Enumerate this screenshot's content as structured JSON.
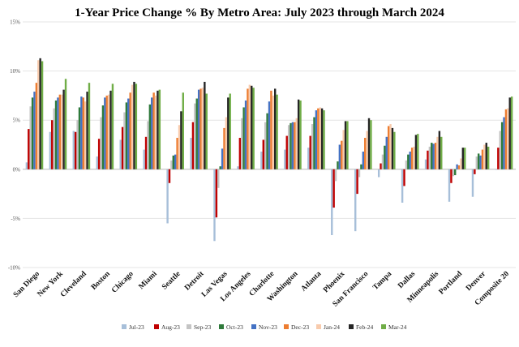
{
  "chart_data": {
    "type": "bar",
    "title": "1-Year Price Change % By Metro Area: July 2023 through March 2024",
    "xlabel": "",
    "ylabel": "",
    "ylim": [
      -10,
      15
    ],
    "yticks": [
      "-10%",
      "-5%",
      "0%",
      "5%",
      "10%",
      "15%"
    ],
    "ytick_values": [
      -10,
      -5,
      0,
      5,
      10,
      15
    ],
    "grid": true,
    "legend_position": "bottom",
    "categories": [
      "San Diego",
      "New York",
      "Cleveland",
      "Boston",
      "Chicago",
      "Miami",
      "Seattle",
      "Detroit",
      "Las Vegas",
      "Los Angeles",
      "Charlotte",
      "Washington",
      "Atlanta",
      "Phoenix",
      "San Francisco",
      "Tampa",
      "Dallas",
      "Minneapolis",
      "Portland",
      "Denver",
      "Composite 20"
    ],
    "series": [
      {
        "name": "Jul-23",
        "color": "#a7bfd9",
        "values": [
          0.7,
          3.8,
          3.9,
          1.3,
          3.0,
          2.0,
          -5.5,
          3.2,
          -7.3,
          0.3,
          1.8,
          2.0,
          2.2,
          -6.7,
          -6.3,
          -0.8,
          -3.4,
          1.0,
          -3.3,
          -2.8,
          0.0
        ]
      },
      {
        "name": "Aug-23",
        "color": "#c00000",
        "values": [
          4.1,
          5.0,
          3.8,
          3.1,
          4.3,
          3.3,
          -1.4,
          4.8,
          -4.9,
          3.2,
          3.0,
          3.4,
          3.4,
          -3.9,
          -2.5,
          0.6,
          -1.7,
          1.9,
          -1.4,
          -0.5,
          2.2
        ]
      },
      {
        "name": "Sep-23",
        "color": "#c4c4c4",
        "values": [
          6.4,
          6.2,
          5.0,
          5.3,
          5.8,
          4.9,
          0.9,
          6.7,
          -1.9,
          5.2,
          4.8,
          4.5,
          4.6,
          -1.2,
          -0.8,
          1.5,
          0.9,
          2.3,
          -0.7,
          1.3,
          3.9
        ]
      },
      {
        "name": "Oct-23",
        "color": "#2f7a3b",
        "values": [
          7.3,
          7.0,
          6.3,
          6.5,
          6.8,
          6.6,
          1.4,
          7.2,
          0.3,
          6.3,
          5.7,
          4.7,
          5.3,
          0.8,
          0.5,
          2.4,
          1.5,
          2.7,
          -0.6,
          1.6,
          4.8
        ]
      },
      {
        "name": "Nov-23",
        "color": "#4472c4",
        "values": [
          7.9,
          7.3,
          7.4,
          7.3,
          7.2,
          7.3,
          1.5,
          8.1,
          2.1,
          7.0,
          6.9,
          4.8,
          6.0,
          2.5,
          1.8,
          3.3,
          1.8,
          2.6,
          0.5,
          1.4,
          5.3
        ]
      },
      {
        "name": "Dec-23",
        "color": "#ed7d31",
        "values": [
          8.8,
          7.6,
          7.3,
          7.5,
          7.8,
          7.8,
          3.2,
          8.2,
          4.2,
          8.2,
          8.0,
          4.8,
          6.2,
          2.9,
          3.2,
          4.4,
          2.2,
          2.7,
          0.4,
          2.0,
          6.1
        ]
      },
      {
        "name": "Jan-24",
        "color": "#f8cbad",
        "values": [
          11.1,
          7.6,
          6.9,
          7.6,
          8.6,
          7.5,
          4.5,
          8.3,
          5.3,
          8.6,
          7.5,
          5.2,
          6.3,
          4.0,
          3.9,
          4.6,
          2.3,
          3.3,
          1.1,
          2.5,
          6.2
        ]
      },
      {
        "name": "Feb-24",
        "color": "#262626",
        "values": [
          11.3,
          8.1,
          7.9,
          8.0,
          8.9,
          8.0,
          5.9,
          8.9,
          7.3,
          8.5,
          8.2,
          7.1,
          6.2,
          4.9,
          5.2,
          4.2,
          3.5,
          3.9,
          2.2,
          2.7,
          7.3
        ]
      },
      {
        "name": "Mar-24",
        "color": "#70ad47",
        "values": [
          11.0,
          9.2,
          8.8,
          8.7,
          8.7,
          8.1,
          7.8,
          7.7,
          7.7,
          8.3,
          7.6,
          7.0,
          6.0,
          4.9,
          5.0,
          3.8,
          3.6,
          3.3,
          2.2,
          2.3,
          7.4
        ]
      }
    ]
  }
}
